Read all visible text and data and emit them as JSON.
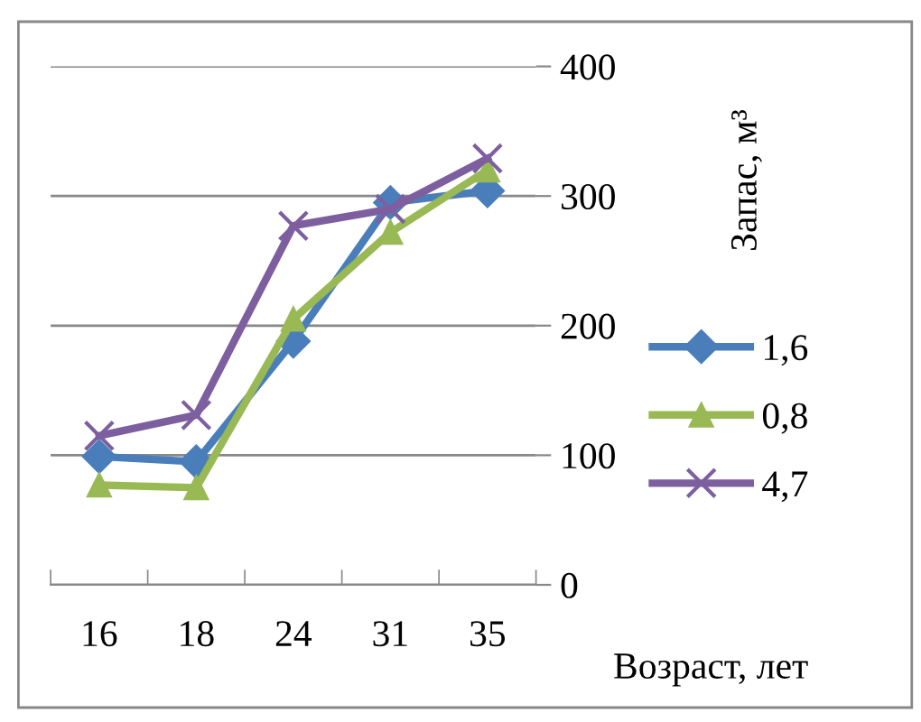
{
  "chart_data": {
    "type": "line",
    "xlabel": "Возраст, лет",
    "ylabel": "Запас, м³",
    "categories": [
      "16",
      "18",
      "24",
      "31",
      "35"
    ],
    "series": [
      {
        "name": "1,6",
        "color": "#4a7ebb",
        "marker": "diamond",
        "values": [
          99,
          95,
          188,
          295,
          304
        ]
      },
      {
        "name": "0,8",
        "color": "#98b954",
        "marker": "triangle",
        "values": [
          77,
          75,
          205,
          272,
          320
        ]
      },
      {
        "name": "4,7",
        "color": "#7d5fa0",
        "marker": "cross",
        "values": [
          115,
          131,
          277,
          290,
          329
        ]
      }
    ],
    "ylim": [
      0,
      400
    ],
    "yticks": [
      0,
      100,
      200,
      300,
      400
    ],
    "grid": "y",
    "legend": "right"
  }
}
